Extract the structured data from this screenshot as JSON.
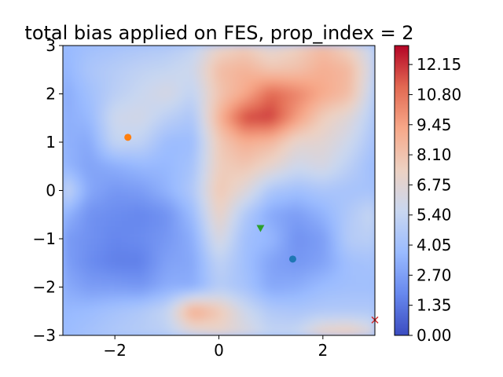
{
  "chart_data": {
    "type": "heatmap",
    "title": "total bias applied on FES, prop_index = 2",
    "xlabel": "",
    "ylabel": "",
    "xlim": [
      -3,
      3
    ],
    "ylim": [
      -3,
      3
    ],
    "xticks": [
      {
        "value": -2,
        "label": "−2"
      },
      {
        "value": 0,
        "label": "0"
      },
      {
        "value": 2,
        "label": "2"
      }
    ],
    "yticks": [
      {
        "value": 3,
        "label": "3"
      },
      {
        "value": 2,
        "label": "2"
      },
      {
        "value": 1,
        "label": "1"
      },
      {
        "value": 0,
        "label": "0"
      },
      {
        "value": -1,
        "label": "−1"
      },
      {
        "value": -2,
        "label": "−2"
      },
      {
        "value": -3,
        "label": "−3"
      }
    ],
    "colorbar": {
      "colormap": "coolwarm",
      "min": 0.0,
      "max": 13.0,
      "ticks": [
        {
          "value": 0.0,
          "label": "0.00"
        },
        {
          "value": 1.35,
          "label": "1.35"
        },
        {
          "value": 2.7,
          "label": "2.70"
        },
        {
          "value": 4.05,
          "label": "4.05"
        },
        {
          "value": 5.4,
          "label": "5.40"
        },
        {
          "value": 6.75,
          "label": "6.75"
        },
        {
          "value": 8.1,
          "label": "8.10"
        },
        {
          "value": 9.45,
          "label": "9.45"
        },
        {
          "value": 10.8,
          "label": "10.80"
        },
        {
          "value": 12.15,
          "label": "12.15"
        }
      ],
      "stops": [
        "#3b4cc0",
        "#6788ee",
        "#9abbff",
        "#c9d7f0",
        "#edd1c2",
        "#f7a889",
        "#e26952",
        "#b40426"
      ]
    },
    "grid": false,
    "field": {
      "x": [
        -3,
        -2.5,
        -2,
        -1.5,
        -1,
        -0.5,
        0,
        0.5,
        1,
        1.5,
        2,
        2.5,
        3
      ],
      "y": [
        3,
        2.5,
        2,
        1.5,
        1,
        0.5,
        0,
        -0.5,
        -1,
        -1.5,
        -2,
        -2.5,
        -3
      ],
      "z": [
        [
          3.6,
          4.0,
          4.2,
          4.4,
          4.6,
          5.2,
          7.0,
          7.6,
          6.6,
          7.4,
          8.4,
          7.2,
          5.2
        ],
        [
          3.4,
          4.4,
          4.8,
          5.2,
          5.4,
          5.8,
          8.4,
          8.8,
          8.0,
          8.2,
          9.0,
          8.6,
          5.6
        ],
        [
          3.0,
          4.0,
          5.0,
          5.6,
          6.2,
          5.2,
          8.0,
          9.2,
          11.2,
          10.4,
          9.2,
          8.4,
          5.0
        ],
        [
          3.2,
          3.6,
          5.8,
          6.0,
          5.0,
          4.4,
          8.8,
          11.8,
          12.0,
          9.6,
          7.6,
          6.6,
          4.6
        ],
        [
          3.4,
          3.0,
          5.4,
          5.2,
          3.8,
          3.8,
          7.8,
          9.0,
          8.6,
          7.0,
          6.8,
          5.8,
          4.2
        ],
        [
          3.6,
          2.8,
          3.2,
          3.6,
          3.6,
          4.2,
          7.6,
          8.0,
          7.0,
          5.8,
          6.2,
          5.0,
          3.8
        ],
        [
          5.8,
          3.0,
          2.4,
          2.6,
          3.4,
          4.6,
          8.0,
          6.6,
          4.4,
          4.0,
          4.4,
          4.2,
          4.2
        ],
        [
          3.6,
          2.2,
          2.0,
          1.8,
          2.2,
          3.8,
          7.4,
          4.6,
          3.0,
          2.6,
          3.4,
          4.6,
          5.6
        ],
        [
          2.6,
          2.2,
          1.8,
          2.0,
          2.4,
          3.2,
          6.4,
          4.0,
          3.6,
          2.2,
          2.6,
          4.8,
          5.0
        ],
        [
          2.8,
          2.0,
          1.6,
          1.6,
          2.8,
          3.0,
          5.2,
          4.0,
          2.8,
          2.4,
          2.8,
          4.0,
          4.2
        ],
        [
          3.2,
          2.6,
          2.6,
          2.4,
          3.2,
          3.2,
          4.8,
          4.2,
          3.0,
          3.2,
          3.8,
          4.0,
          4.0
        ],
        [
          3.6,
          3.8,
          4.2,
          4.6,
          5.4,
          9.4,
          8.0,
          5.8,
          4.6,
          4.4,
          4.6,
          4.6,
          4.6
        ],
        [
          3.8,
          4.2,
          4.6,
          4.8,
          5.0,
          6.0,
          6.8,
          6.4,
          5.4,
          5.6,
          7.6,
          8.0,
          6.4
        ]
      ]
    },
    "markers": [
      {
        "shape": "circle",
        "x": -1.75,
        "y": 1.1,
        "color": "#ff7f0e"
      },
      {
        "shape": "triangle-down",
        "x": 0.8,
        "y": -0.78,
        "color": "#2ca02c"
      },
      {
        "shape": "circle",
        "x": 1.42,
        "y": -1.42,
        "color": "#1f77b4"
      },
      {
        "shape": "x",
        "x": 3.0,
        "y": -2.68,
        "color": "#d62728"
      }
    ]
  }
}
